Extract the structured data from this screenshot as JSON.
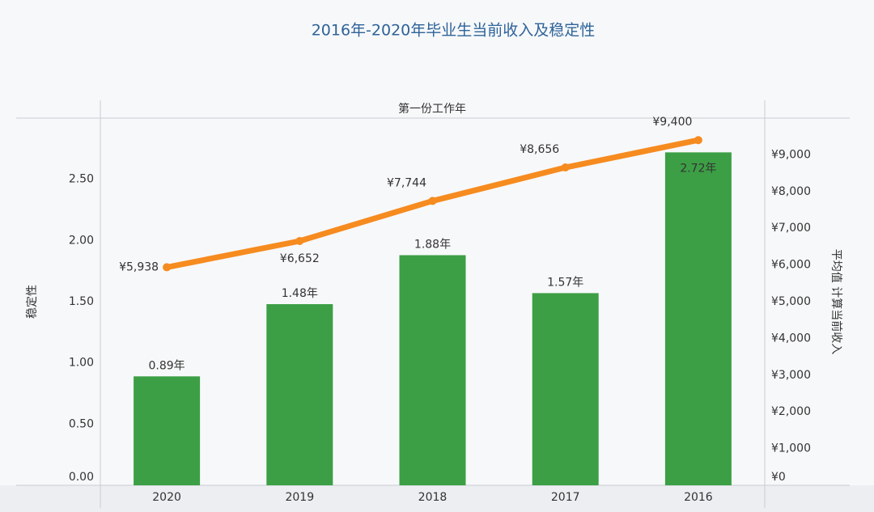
{
  "chart_data": {
    "type": "combo",
    "title": "2016年-2020年毕业生当前收入及稳定性",
    "x_label": "第一份工作年",
    "y_label": "稳定性",
    "y2_label": "平均值 计算当前收入",
    "categories": [
      "2020",
      "2019",
      "2018",
      "2017",
      "2016"
    ],
    "ylim": [
      0,
      3
    ],
    "yticks": [
      {
        "value": 0,
        "label": "0.00"
      },
      {
        "value": 0.5,
        "label": "0.50"
      },
      {
        "value": 1,
        "label": "1.00"
      },
      {
        "value": 1.5,
        "label": "1.50"
      },
      {
        "value": 2,
        "label": "2.00"
      },
      {
        "value": 2.5,
        "label": "2.50"
      }
    ],
    "y2lim": [
      0,
      10000
    ],
    "y2ticks": [
      {
        "value": 0,
        "label": "¥0"
      },
      {
        "value": 1000,
        "label": "¥1,000"
      },
      {
        "value": 2000,
        "label": "¥2,000"
      },
      {
        "value": 3000,
        "label": "¥3,000"
      },
      {
        "value": 4000,
        "label": "¥4,000"
      },
      {
        "value": 5000,
        "label": "¥5,000"
      },
      {
        "value": 6000,
        "label": "¥6,000"
      },
      {
        "value": 7000,
        "label": "¥7,000"
      },
      {
        "value": 8000,
        "label": "¥8,000"
      },
      {
        "value": 9000,
        "label": "¥9,000"
      }
    ],
    "series": [
      {
        "name": "稳定性",
        "type": "bar",
        "color": "#3c9f45",
        "values": [
          0.89,
          1.48,
          1.88,
          1.57,
          2.72
        ],
        "value_labels": [
          "0.89年",
          "1.48年",
          "1.88年",
          "1.57年",
          "2.72年"
        ]
      },
      {
        "name": "平均值 计算当前收入",
        "type": "line",
        "axis": "y2",
        "color": "#f68b1f",
        "values": [
          5938,
          6652,
          7744,
          8656,
          9400
        ],
        "value_labels": [
          "¥5,938",
          "¥6,652",
          "¥7,744",
          "¥8,656",
          "¥9,400"
        ]
      }
    ]
  }
}
